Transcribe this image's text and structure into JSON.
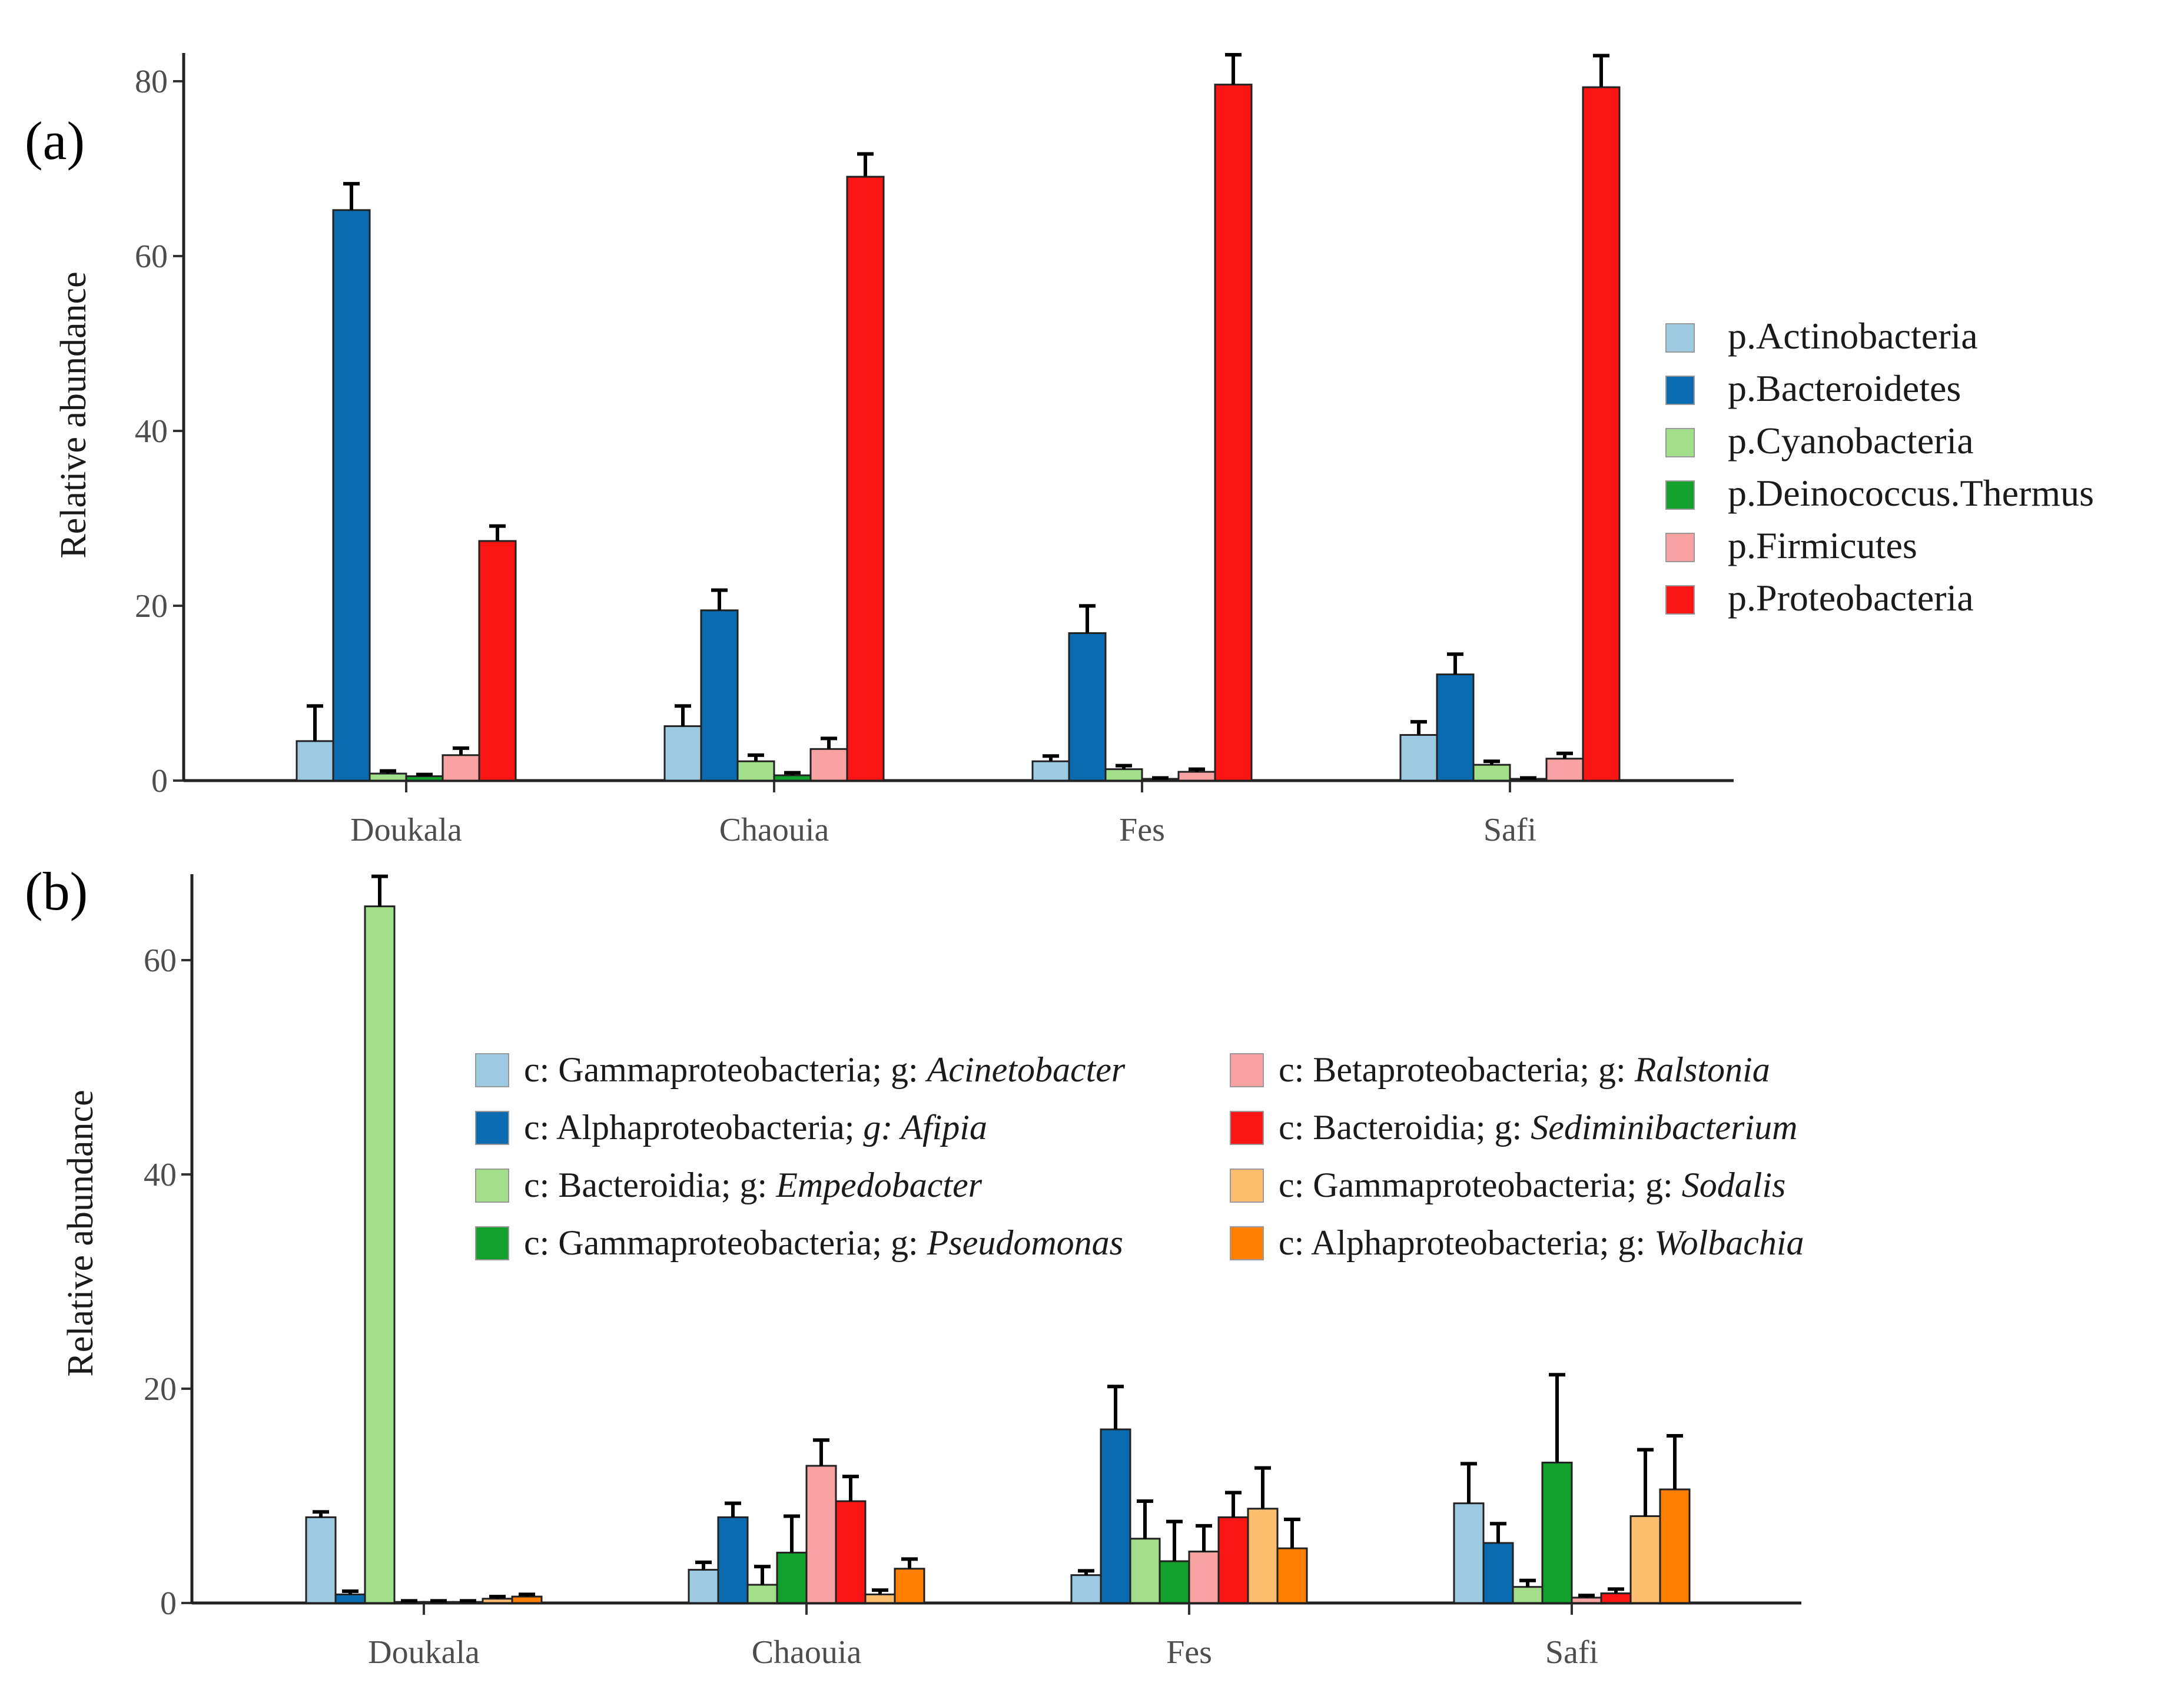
{
  "panels": [
    {
      "tag": "(a)",
      "ylabel": "Relative abundance",
      "yticks": [
        "0",
        "20",
        "40",
        "60",
        "80"
      ],
      "xticks": [
        "Doukala",
        "Chaouia",
        "Fes",
        "Safi"
      ]
    },
    {
      "tag": "(b)",
      "ylabel": "Relative abundance",
      "yticks": [
        "0",
        "20",
        "40",
        "60"
      ],
      "xticks": [
        "Doukala",
        "Chaouia",
        "Fes",
        "Safi"
      ]
    }
  ],
  "chart_data": [
    {
      "type": "bar",
      "title": "(a)",
      "xlabel": "",
      "ylabel": "Relative abundance",
      "ylim": [
        0,
        83
      ],
      "yticks": [
        0,
        20,
        40,
        60,
        80
      ],
      "categories": [
        "Doukala",
        "Chaouia",
        "Fes",
        "Safi"
      ],
      "legend_position": "right",
      "series": [
        {
          "name": "p.Actinobacteria",
          "color": "#9ecae1",
          "values": [
            4.5,
            6.2,
            2.2,
            5.2
          ],
          "errors": [
            4.0,
            2.3,
            0.6,
            1.5
          ]
        },
        {
          "name": "p.Bacteroidetes",
          "color": "#0a6bb0",
          "values": [
            65.0,
            19.4,
            16.8,
            12.1
          ],
          "errors": [
            3.0,
            2.3,
            3.1,
            2.3
          ]
        },
        {
          "name": "p.Cyanobacteria",
          "color": "#a3df8a",
          "values": [
            0.8,
            2.2,
            1.3,
            1.8
          ],
          "errors": [
            0.3,
            0.7,
            0.4,
            0.4
          ]
        },
        {
          "name": "p.Deinococcus.Thermus",
          "color": "#12a12c",
          "values": [
            0.5,
            0.6,
            0.2,
            0.2
          ],
          "errors": [
            0.2,
            0.3,
            0.1,
            0.1
          ]
        },
        {
          "name": "p.Firmicutes",
          "color": "#f9a2a3",
          "values": [
            2.9,
            3.6,
            1.0,
            2.5
          ],
          "errors": [
            0.8,
            1.2,
            0.3,
            0.6
          ]
        },
        {
          "name": "p.Proteobacteria",
          "color": "#fb1414",
          "values": [
            27.3,
            68.8,
            79.3,
            79.0
          ],
          "errors": [
            1.7,
            2.6,
            3.4,
            3.6
          ]
        }
      ]
    },
    {
      "type": "bar",
      "title": "(b)",
      "xlabel": "",
      "ylabel": "Relative abundance",
      "ylim": [
        0,
        68
      ],
      "yticks": [
        0,
        20,
        40,
        60
      ],
      "categories": [
        "Doukala",
        "Chaouia",
        "Fes",
        "Safi"
      ],
      "legend_position": "inside-top",
      "series": [
        {
          "name_prefix": "c: Gammaproteobacteria; g: ",
          "name_genus": "Acinetobacter",
          "color": "#9ecae1",
          "values": [
            8.0,
            3.1,
            2.6,
            9.3
          ],
          "errors": [
            0.5,
            0.7,
            0.4,
            3.7
          ]
        },
        {
          "name_prefix": "c: Alphaproteobacteria; ",
          "name_genus": "g: Afipia",
          "color": "#0a6bb0",
          "values": [
            0.8,
            8.0,
            16.2,
            5.6
          ],
          "errors": [
            0.3,
            1.3,
            4.0,
            1.8
          ]
        },
        {
          "name_prefix": "c: Bacteroidia; g: ",
          "name_genus": "Empedobacter",
          "color": "#a3df8a",
          "values": [
            65.0,
            1.7,
            6.0,
            1.5
          ],
          "errors": [
            2.8,
            1.7,
            3.5,
            0.6
          ]
        },
        {
          "name_prefix": "c: Gammaproteobacteria; g: ",
          "name_genus": "Pseudomonas",
          "color": "#12a12c",
          "values": [
            0.1,
            4.7,
            3.9,
            13.1
          ],
          "errors": [
            0.1,
            3.4,
            3.7,
            8.2
          ]
        },
        {
          "name_prefix": "c: Betaproteobacteria; g: ",
          "name_genus": "Ralstonia",
          "color": "#f9a2a3",
          "values": [
            0.1,
            12.8,
            4.8,
            0.5
          ],
          "errors": [
            0.1,
            2.4,
            2.4,
            0.2
          ]
        },
        {
          "name_prefix": "c: Bacteroidia; g: ",
          "name_genus": "Sediminibacterium",
          "color": "#fb1414",
          "values": [
            0.1,
            9.5,
            8.0,
            0.9
          ],
          "errors": [
            0.1,
            2.3,
            2.3,
            0.4
          ]
        },
        {
          "name_prefix": "c: Gammaproteobacteria; g: ",
          "name_genus": "Sodalis",
          "color": "#fdbf6f",
          "values": [
            0.4,
            0.8,
            8.8,
            8.1
          ],
          "errors": [
            0.2,
            0.4,
            3.8,
            6.2
          ]
        },
        {
          "name_prefix": "c: Alphaproteobacteria; g: ",
          "name_genus": "Wolbachia",
          "color": "#fe7f00",
          "values": [
            0.6,
            3.2,
            5.1,
            10.6
          ],
          "errors": [
            0.2,
            0.9,
            2.7,
            5.0
          ]
        }
      ]
    }
  ]
}
